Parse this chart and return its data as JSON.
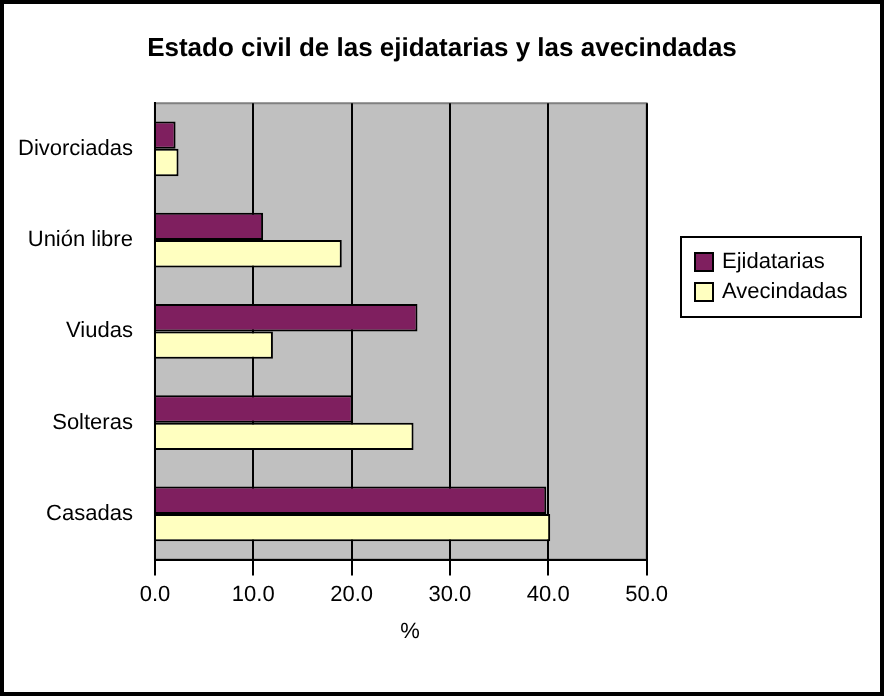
{
  "chart_data": {
    "type": "bar",
    "orientation": "horizontal",
    "title": "Estado civil de las ejidatarias y las avecindadas",
    "xlabel": "%",
    "categories": [
      "Divorciadas",
      "Unión libre",
      "Viudas",
      "Solteras",
      "Casadas"
    ],
    "series": [
      {
        "name": "Ejidatarias",
        "color": "#7f1f5f",
        "values": [
          2.1,
          11.0,
          26.7,
          20.1,
          39.8
        ]
      },
      {
        "name": "Avecindadas",
        "color": "#ffffc0",
        "values": [
          2.4,
          19.0,
          12.0,
          26.3,
          40.2
        ]
      }
    ],
    "xlim": [
      0,
      50
    ],
    "xticks": [
      {
        "value": 0,
        "label": "0.0"
      },
      {
        "value": 10,
        "label": "10.0"
      },
      {
        "value": 20,
        "label": "20.0"
      },
      {
        "value": 30,
        "label": "30.0"
      },
      {
        "value": 40,
        "label": "40.0"
      },
      {
        "value": 50,
        "label": "50.0"
      }
    ],
    "grid": "x",
    "legend": "right"
  }
}
